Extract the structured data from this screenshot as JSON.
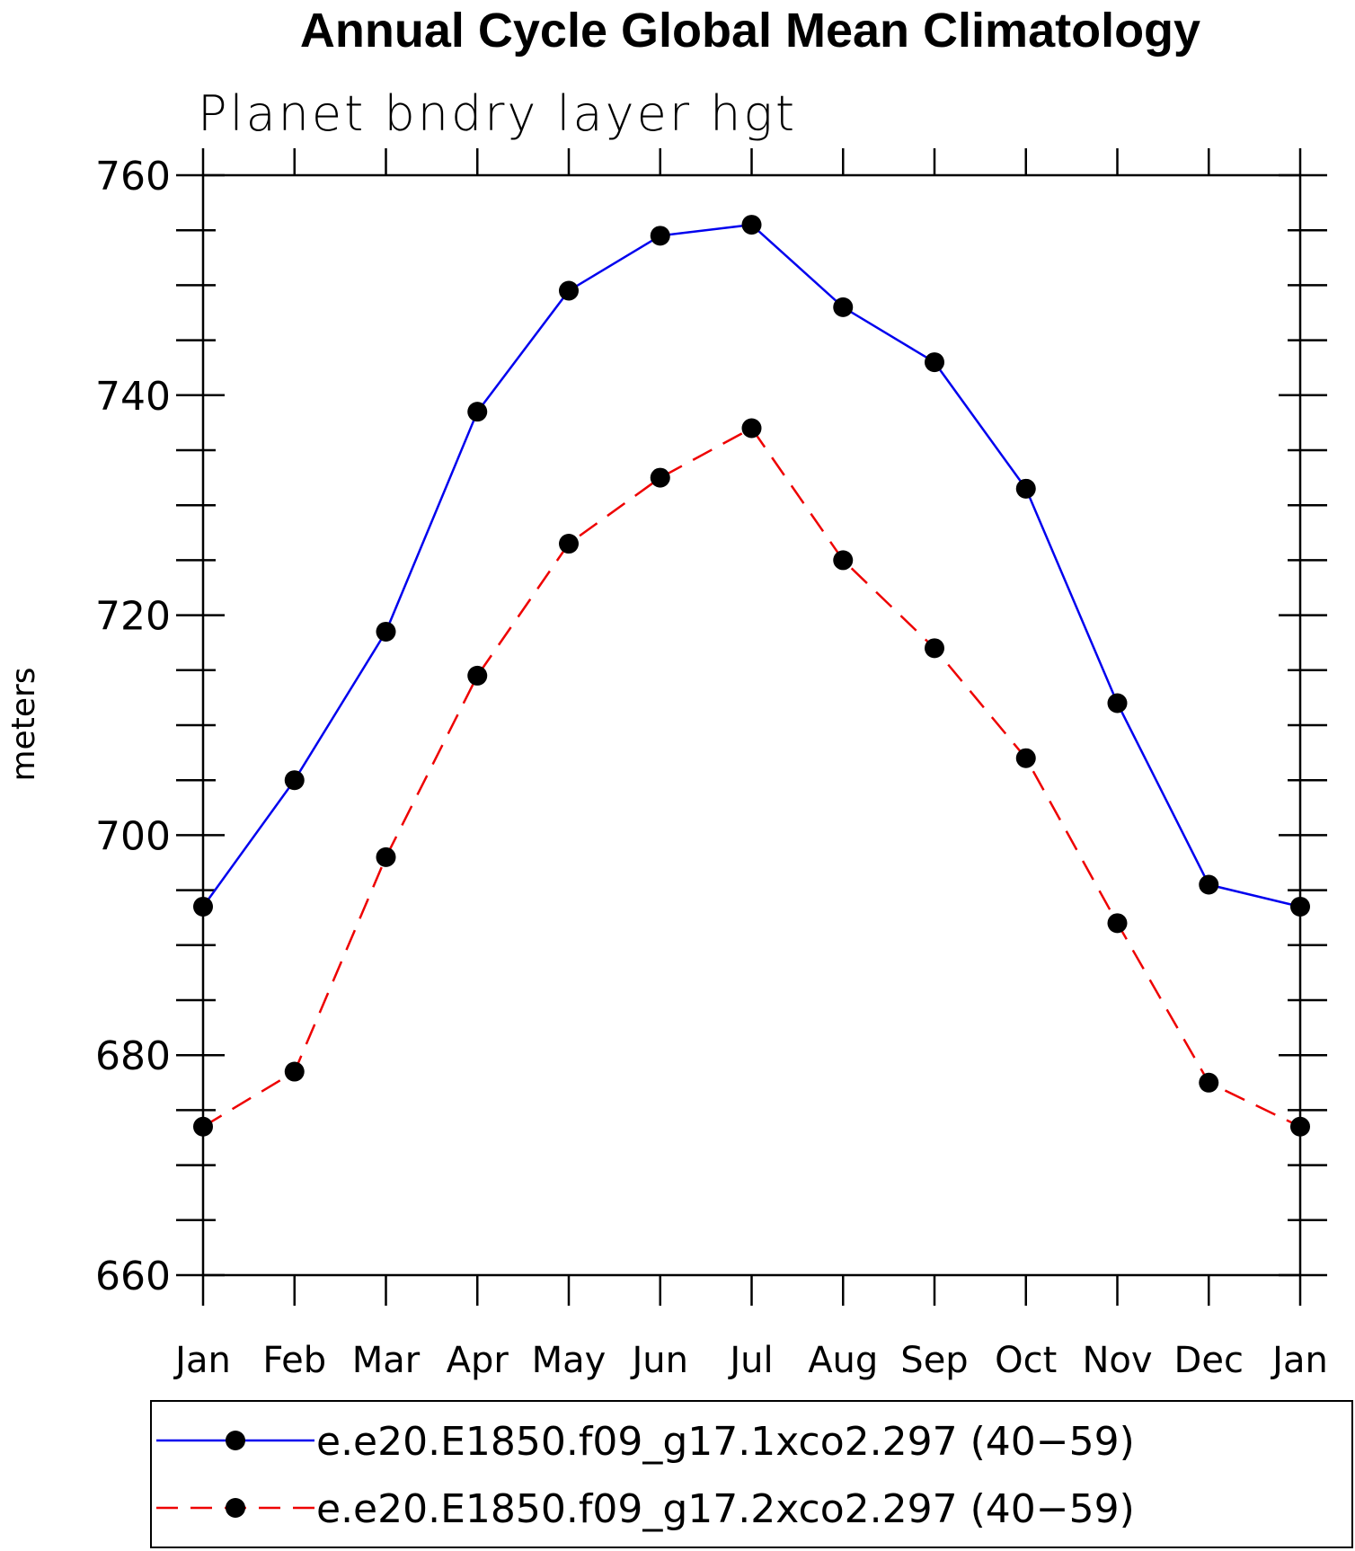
{
  "chart_data": {
    "type": "line",
    "title": "Annual Cycle Global Mean Climatology",
    "subtitle": "Planet bndry layer hgt",
    "ylabel": "meters",
    "xlabel": "",
    "categories": [
      "Jan",
      "Feb",
      "Mar",
      "Apr",
      "May",
      "Jun",
      "Jul",
      "Aug",
      "Sep",
      "Oct",
      "Nov",
      "Dec",
      "Jan"
    ],
    "ylim": [
      660,
      760
    ],
    "yticks": [
      660,
      680,
      700,
      720,
      740,
      760
    ],
    "yminor_step": 5,
    "grid": false,
    "legend_position": "bottom",
    "series": [
      {
        "name": "e.e20.E1850.f09_g17.1xco2.297 (40−59)",
        "color": "#0000ee",
        "dash": "solid",
        "marker": "filled-circle",
        "values": [
          693.5,
          705,
          718.5,
          738.5,
          749.5,
          754.5,
          755.5,
          748,
          743,
          731.5,
          712,
          695.5,
          693.5
        ]
      },
      {
        "name": "e.e20.E1850.f09_g17.2xco2.297 (40−59)",
        "color": "#ee0000",
        "dash": "dashed",
        "marker": "filled-circle",
        "values": [
          673.5,
          678.5,
          698,
          714.5,
          726.5,
          732.5,
          737,
          725,
          717,
          707,
          692,
          677.5,
          673.5
        ]
      }
    ]
  }
}
